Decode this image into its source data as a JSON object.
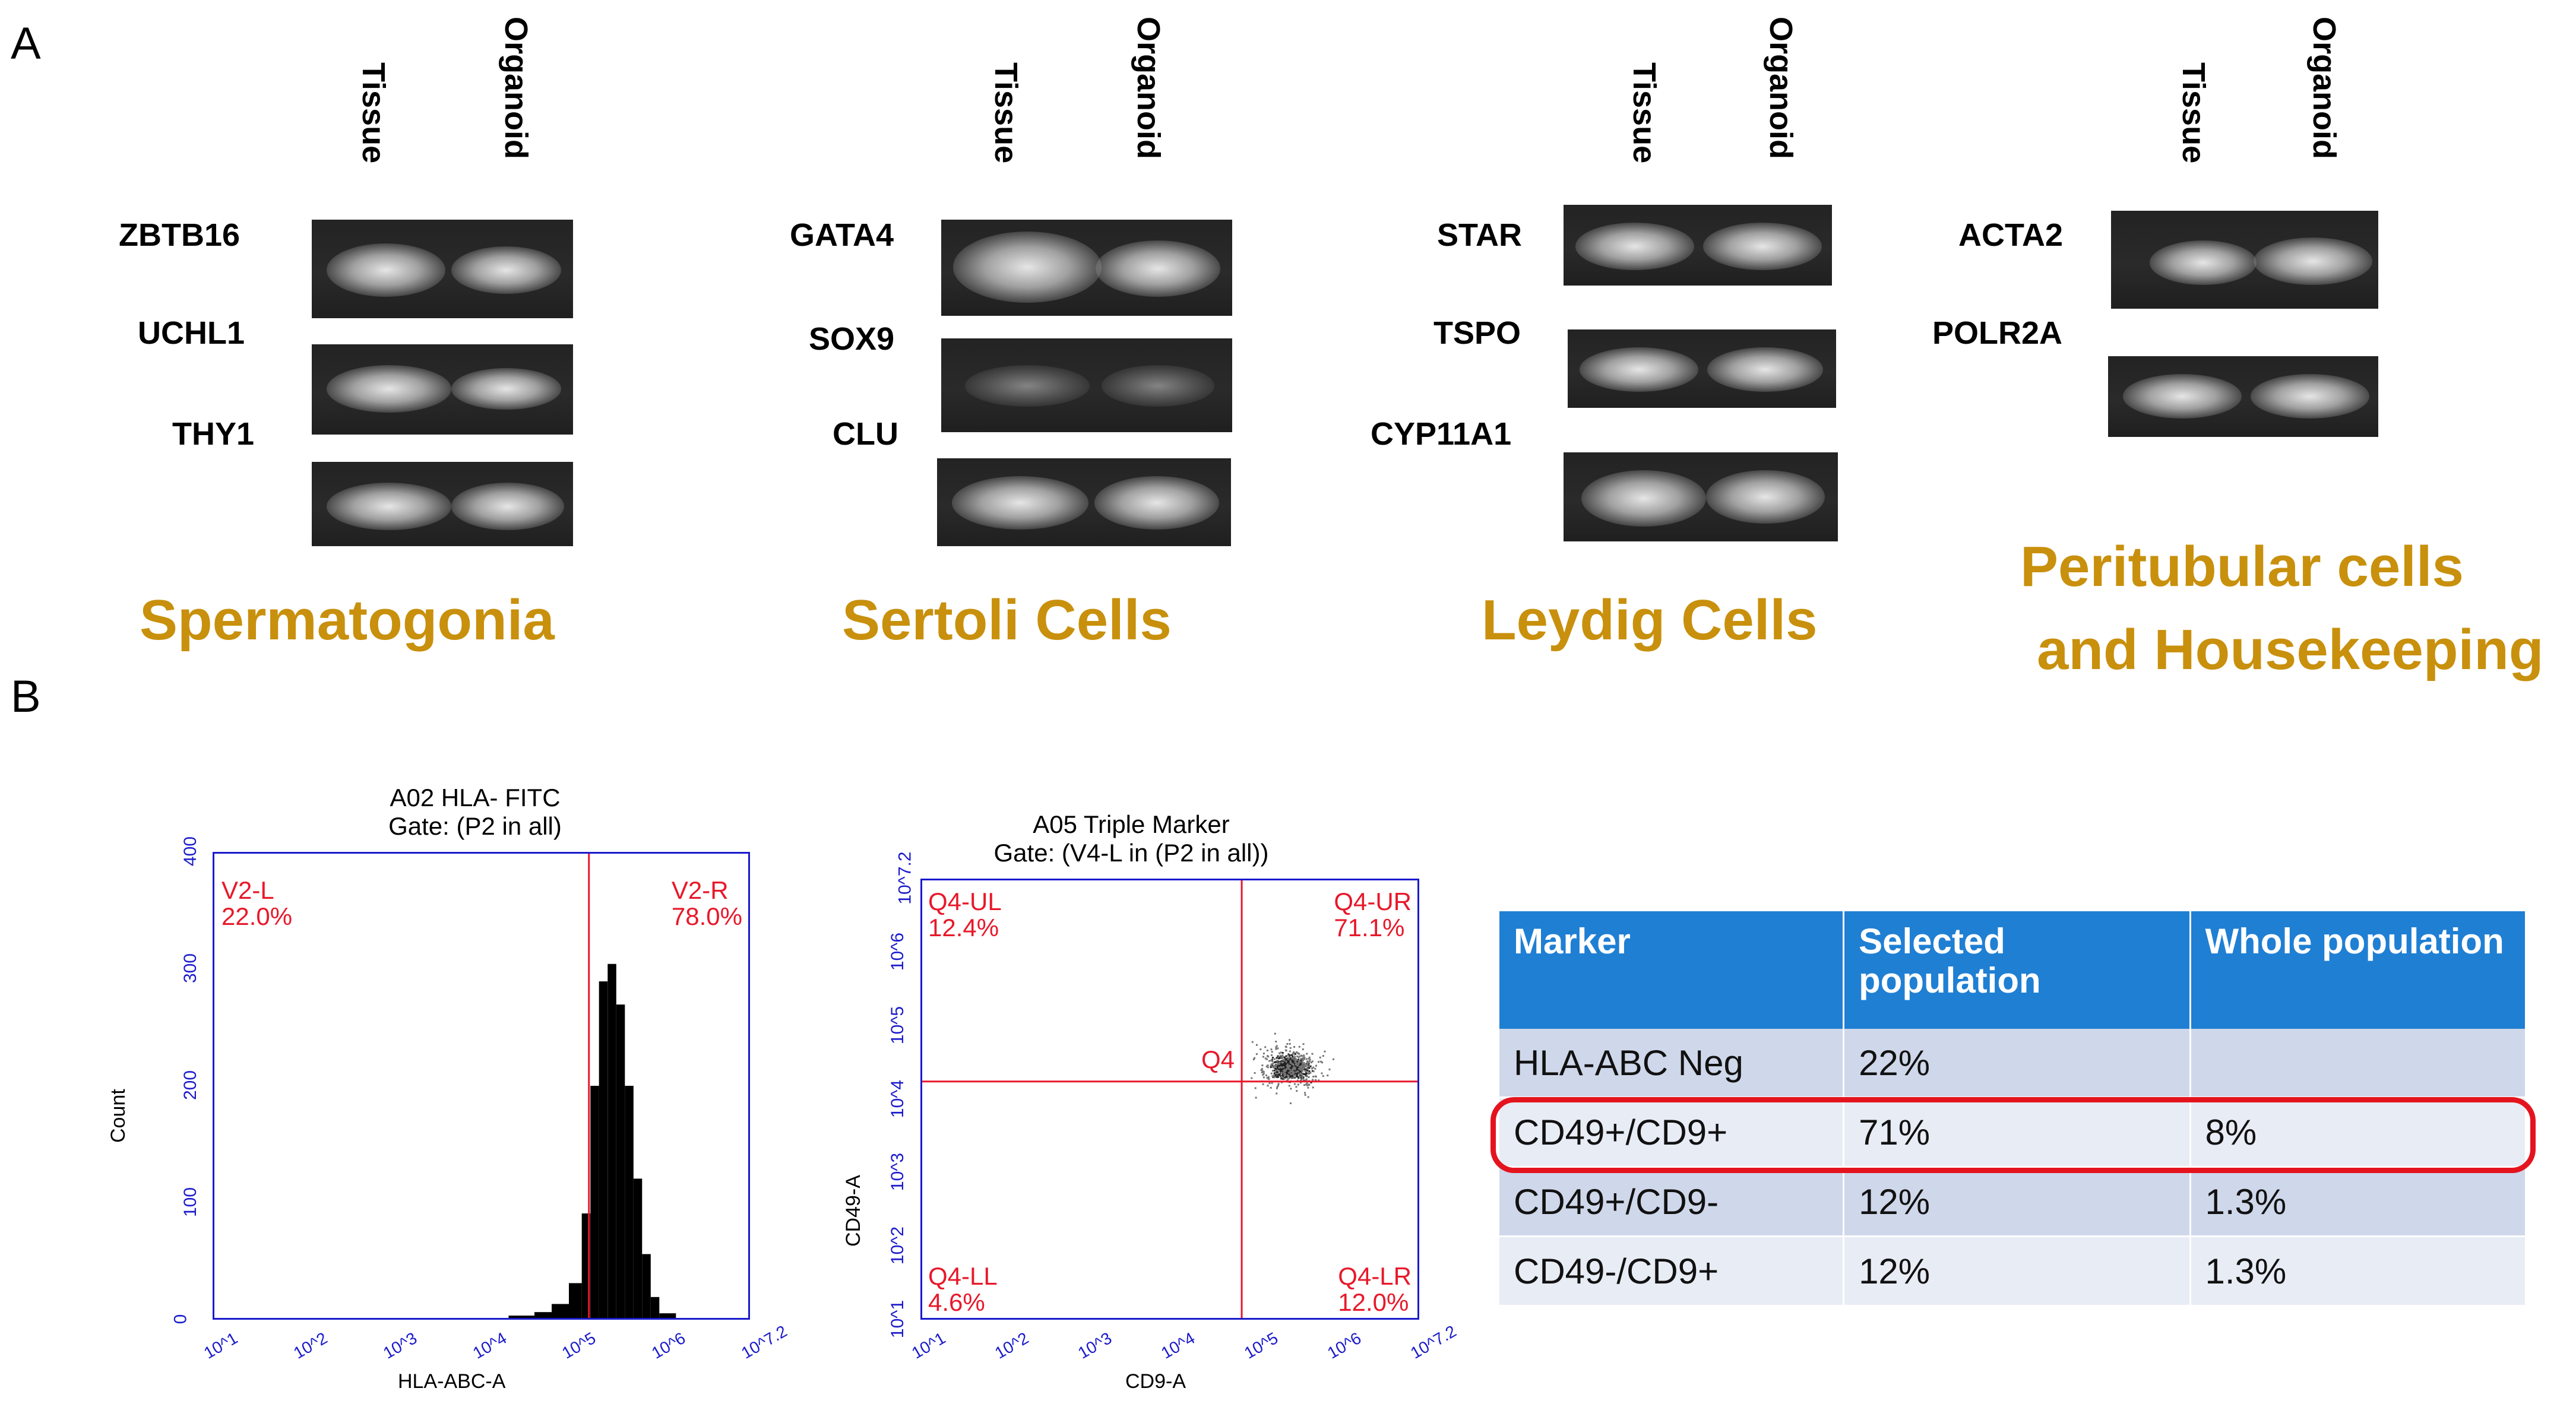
{
  "panel_a": {
    "letter": "A",
    "lanes": [
      "Tissue",
      "Organoid"
    ],
    "groups": [
      {
        "category": "Spermatogonia",
        "genes": [
          "ZBTB16",
          "UCHL1",
          "THY1"
        ]
      },
      {
        "category": "Sertoli Cells",
        "genes": [
          "GATA4",
          "SOX9",
          "CLU"
        ]
      },
      {
        "category": "Leydig Cells",
        "genes": [
          "STAR",
          "TSPO",
          "CYP11A1"
        ]
      },
      {
        "category": "Peritubular cells",
        "category_line2": "and Housekeeping",
        "genes": [
          "ACTA2",
          "POLR2A"
        ]
      }
    ]
  },
  "panel_b": {
    "letter": "B",
    "histogram": {
      "title": "A02 HLA- FITC",
      "gate": "Gate: (P2 in all)",
      "ylabel": "Count",
      "xlabel": "HLA-ABC-A",
      "y_ticks": [
        "0",
        "100",
        "200",
        "300",
        "400"
      ],
      "x_ticks": [
        "10^1",
        "10^2",
        "10^3",
        "10^4",
        "10^5",
        "10^6",
        "10^7.2"
      ],
      "left_gate": {
        "name": "V2-L",
        "pct": "22.0%"
      },
      "right_gate": {
        "name": "V2-R",
        "pct": "78.0%"
      }
    },
    "scatter": {
      "title": "A05 Triple Marker",
      "gate": "Gate: (V4-L in (P2 in all))",
      "ylabel": "CD49-A",
      "xlabel": "CD9-A",
      "y_ticks": [
        "10^1",
        "10^2",
        "10^3",
        "10^4",
        "10^5",
        "10^6",
        "10^7.2"
      ],
      "x_ticks": [
        "10^1",
        "10^2",
        "10^3",
        "10^4",
        "10^5",
        "10^6",
        "10^7.2"
      ],
      "center_label": "Q4",
      "quadrants": {
        "ul": {
          "name": "Q4-UL",
          "pct": "12.4%"
        },
        "ur": {
          "name": "Q4-UR",
          "pct": "71.1%"
        },
        "ll": {
          "name": "Q4-LL",
          "pct": "4.6%"
        },
        "lr": {
          "name": "Q4-LR",
          "pct": "12.0%"
        }
      }
    },
    "table": {
      "headers": [
        "Marker",
        "Selected population",
        "Whole population"
      ],
      "rows": [
        [
          "HLA-ABC Neg",
          "22%",
          ""
        ],
        [
          "CD49+/CD9+",
          "71%",
          "8%"
        ],
        [
          "CD49+/CD9-",
          "12%",
          "1.3%"
        ],
        [
          "CD49-/CD9+",
          "12%",
          "1.3%"
        ]
      ]
    }
  },
  "colors": {
    "category": "#c8900c",
    "axis": "#1a1acc",
    "gate": "#e8182a",
    "table_header": "#1f7fd3",
    "highlight": "#e4141e"
  },
  "chart_data": [
    {
      "type": "bar",
      "title": "A02 HLA- FITC",
      "xlabel": "HLA-ABC-A",
      "ylabel": "Count",
      "x_log10": [
        4.5,
        4.8,
        5.0,
        5.2,
        5.35,
        5.45,
        5.55,
        5.65,
        5.75,
        5.85,
        5.95,
        6.05,
        6.15,
        6.25
      ],
      "values": [
        2,
        5,
        12,
        30,
        90,
        200,
        290,
        305,
        270,
        200,
        120,
        55,
        18,
        4
      ],
      "xlim": [
        1,
        7.2
      ],
      "ylim": [
        0,
        400
      ],
      "gate_threshold_log10": 5.35
    },
    {
      "type": "scatter",
      "title": "A05 Triple Marker",
      "xlabel": "CD9-A",
      "ylabel": "CD49-A",
      "xlim": [
        1,
        7.2
      ],
      "ylim": [
        1,
        7.2
      ],
      "quadrant_divider_log10": {
        "x": 5.0,
        "y": 4.35
      },
      "cluster_center_log10": {
        "x": 5.6,
        "y": 4.55
      }
    }
  ]
}
